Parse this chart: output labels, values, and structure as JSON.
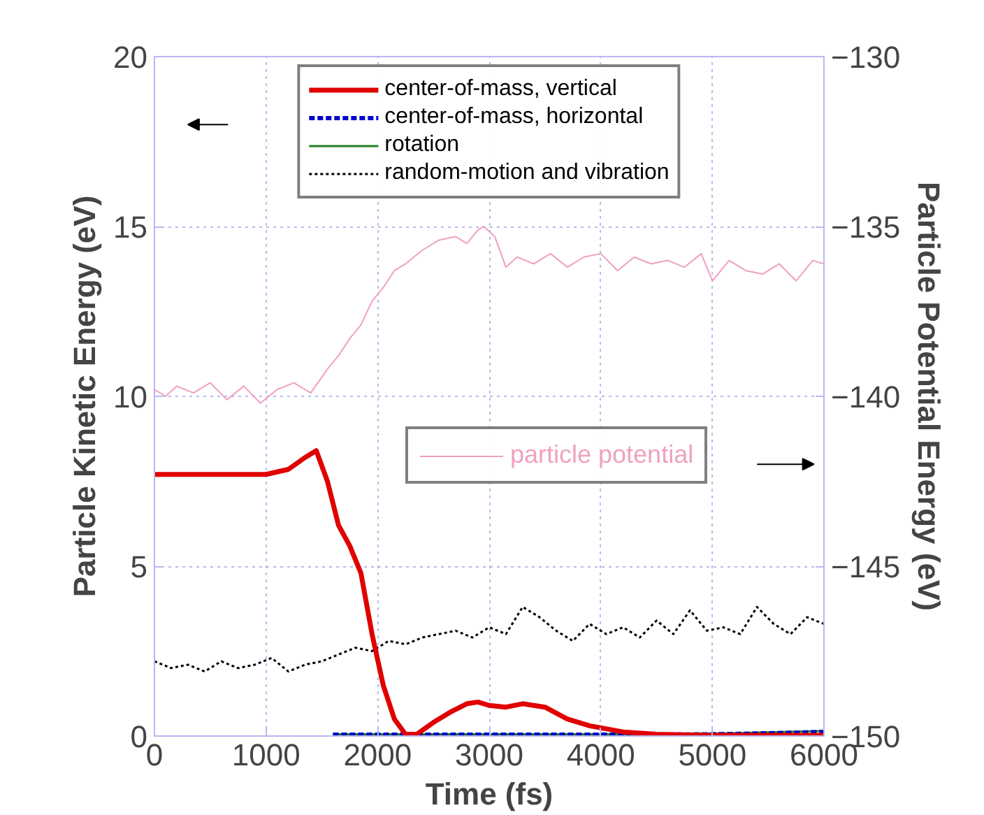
{
  "chart_data": {
    "type": "line",
    "xlabel": "Time (fs)",
    "ylabel": "Particle Kinetic Energy (eV)",
    "y2label": "Particle Potential Energy (eV)",
    "xlim": [
      0,
      6000
    ],
    "xticks": [
      0,
      1000,
      2000,
      3000,
      4000,
      5000,
      6000
    ],
    "ylim": [
      0,
      20
    ],
    "yticks": [
      0,
      5,
      10,
      15,
      20
    ],
    "y2lim": [
      -150,
      -130
    ],
    "y2ticks": [
      -150,
      -145,
      -140,
      -135,
      -130
    ],
    "grid": true,
    "legend": "top",
    "marker": "none",
    "series": [
      {
        "name": "center-of-mass, vertical",
        "color": "#e00000",
        "line_style": "solid",
        "x": [
          0,
          1000,
          1200,
          1350,
          1450,
          1550,
          1650,
          1750,
          1850,
          1950,
          2050,
          2150,
          2250,
          2350,
          2500,
          2650,
          2800,
          2900,
          3000,
          3150,
          3300,
          3400,
          3500,
          3700,
          3900,
          4200,
          4500,
          5000,
          6000
        ],
        "values": [
          7.7,
          7.7,
          7.85,
          8.2,
          8.4,
          7.5,
          6.2,
          5.6,
          4.8,
          3,
          1.5,
          0.5,
          0.05,
          0.05,
          0.4,
          0.7,
          0.95,
          1.0,
          0.9,
          0.85,
          0.95,
          0.9,
          0.85,
          0.5,
          0.3,
          0.12,
          0.05,
          0.02,
          0.02
        ]
      },
      {
        "name": "center-of-mass, horizontal",
        "color": "#0000cc",
        "line_style": "dashed",
        "x": [
          1600,
          2500,
          3500,
          4500,
          5200,
          6000
        ],
        "values": [
          0.04,
          0.04,
          0.04,
          0.04,
          0.06,
          0.12
        ]
      },
      {
        "name": "rotation",
        "color": "#208020",
        "line_style": "solid",
        "x": [
          1600,
          2500,
          3500,
          4500,
          5200,
          6000
        ],
        "values": [
          0.05,
          0.05,
          0.05,
          0.05,
          0.08,
          0.15
        ]
      },
      {
        "name": "random-motion and vibration",
        "color": "#000000",
        "line_style": "dotted",
        "x": [
          0,
          150,
          300,
          450,
          600,
          750,
          900,
          1050,
          1200,
          1350,
          1500,
          1650,
          1800,
          1950,
          2100,
          2250,
          2400,
          2550,
          2700,
          2850,
          3000,
          3150,
          3300,
          3450,
          3600,
          3750,
          3900,
          4050,
          4200,
          4350,
          4500,
          4650,
          4800,
          4950,
          5100,
          5250,
          5400,
          5550,
          5700,
          5850,
          6000
        ],
        "values": [
          2.2,
          2.0,
          2.1,
          1.9,
          2.2,
          2.0,
          2.1,
          2.3,
          1.9,
          2.1,
          2.2,
          2.4,
          2.6,
          2.5,
          2.8,
          2.7,
          2.9,
          3.0,
          3.1,
          2.9,
          3.2,
          3.0,
          3.8,
          3.5,
          3.1,
          2.8,
          3.3,
          3.0,
          3.2,
          2.9,
          3.4,
          3.0,
          3.7,
          3.1,
          3.2,
          3.0,
          3.8,
          3.3,
          3.0,
          3.5,
          3.3
        ]
      },
      {
        "name": "particle potential",
        "color": "#f0a0c0",
        "line_style": "solid",
        "axis": "y2",
        "x": [
          0,
          100,
          200,
          350,
          500,
          650,
          800,
          950,
          1100,
          1250,
          1400,
          1550,
          1650,
          1750,
          1850,
          1950,
          2050,
          2150,
          2250,
          2400,
          2550,
          2700,
          2800,
          2900,
          2950,
          3050,
          3150,
          3250,
          3400,
          3550,
          3700,
          3850,
          4000,
          4150,
          4300,
          4450,
          4600,
          4750,
          4900,
          5000,
          5150,
          5300,
          5450,
          5600,
          5750,
          5900,
          6000
        ],
        "values": [
          -139.8,
          -140,
          -139.7,
          -139.9,
          -139.6,
          -140.1,
          -139.7,
          -140.2,
          -139.8,
          -139.6,
          -139.9,
          -139.2,
          -138.8,
          -138.3,
          -137.9,
          -137.2,
          -136.8,
          -136.3,
          -136.1,
          -135.7,
          -135.4,
          -135.3,
          -135.5,
          -135.1,
          -135,
          -135.3,
          -136.2,
          -135.9,
          -136.1,
          -135.8,
          -136.2,
          -135.9,
          -135.8,
          -136.3,
          -135.9,
          -136.1,
          -136.0,
          -136.2,
          -135.8,
          -136.6,
          -136.0,
          -136.3,
          -136.4,
          -136.1,
          -136.6,
          -136.0,
          -136.1
        ]
      }
    ]
  }
}
